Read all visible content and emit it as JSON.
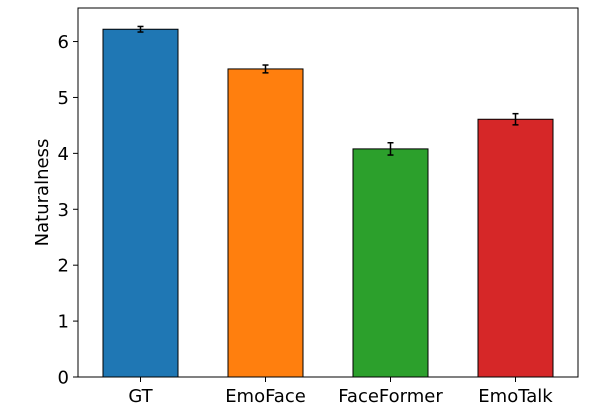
{
  "chart_data": {
    "type": "bar",
    "title": "",
    "xlabel": "",
    "ylabel": "Naturalness",
    "ylim": [
      0,
      6.6
    ],
    "yticks": [
      0,
      1,
      2,
      3,
      4,
      5,
      6
    ],
    "categories": [
      "GT",
      "EmoFace",
      "FaceFormer",
      "EmoTalk"
    ],
    "values": [
      6.22,
      5.51,
      4.08,
      4.61
    ],
    "errors": [
      0.05,
      0.07,
      0.11,
      0.1
    ],
    "colors": [
      "#1f77b4",
      "#ff7f0e",
      "#2ca02c",
      "#d62728"
    ],
    "edge_color": "#000000",
    "grid": false,
    "legend": "none"
  }
}
